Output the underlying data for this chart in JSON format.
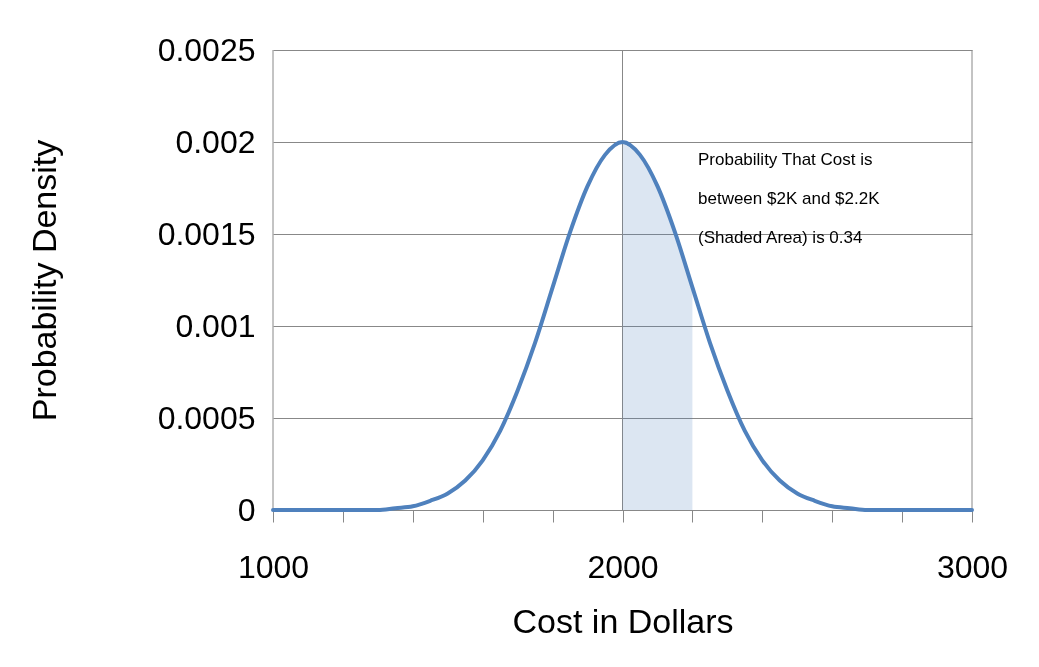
{
  "chart_data": {
    "type": "line",
    "xlabel": "Cost in Dollars",
    "ylabel": "Probability Density",
    "annotations": [
      "Probability That Cost is between $2K and $2.2K (Shaded Area) is 0.34"
    ],
    "series": [
      {
        "color": "#4f81bd",
        "x": [
          1000,
          1100,
          1200,
          1300,
          1350,
          1400,
          1450,
          1500,
          1550,
          1600,
          1650,
          1700,
          1750,
          1800,
          1850,
          1900,
          1950,
          2000,
          2050,
          2100,
          2150,
          2200,
          2250,
          2300,
          2350,
          2400,
          2450,
          2500,
          2550,
          2600,
          2650,
          2700,
          2800,
          2900,
          3000
        ],
        "values": [
          0,
          0,
          0,
          0,
          1e-05,
          2e-05,
          5e-05,
          9e-05,
          0.00016,
          0.00027,
          0.00043,
          0.00065,
          0.00091,
          0.00121,
          0.00151,
          0.00176,
          0.00193,
          0.002,
          0.00193,
          0.00176,
          0.00151,
          0.00121,
          0.00091,
          0.00065,
          0.00043,
          0.00027,
          0.00016,
          9e-05,
          5e-05,
          2e-05,
          1e-05,
          0,
          0,
          0,
          0
        ]
      },
      {
        "type": "area",
        "color": "#4f81bd",
        "x": [
          2000,
          2050,
          2100,
          2150,
          2200
        ],
        "values": [
          0.002,
          0.00193,
          0.00176,
          0.00151,
          0.00121
        ]
      }
    ],
    "xlim": [
      1000,
      3000
    ],
    "xticks": [
      1000,
      {
        "value": 1200,
        "label": null
      },
      {
        "value": 1400,
        "label": null
      },
      {
        "value": 1600,
        "label": null
      },
      {
        "value": 1800,
        "label": null
      },
      2000,
      {
        "value": 2200,
        "label": null
      },
      {
        "value": 2400,
        "label": null
      },
      {
        "value": 2600,
        "label": null
      },
      {
        "value": 2800,
        "label": null
      },
      3000
    ],
    "ylim": [
      0,
      0.0025
    ],
    "yticks": [
      0,
      0.0005,
      0.001,
      0.0015,
      0.002,
      0.0025
    ],
    "grid": true,
    "marker": "none",
    "line_style": "solid"
  }
}
